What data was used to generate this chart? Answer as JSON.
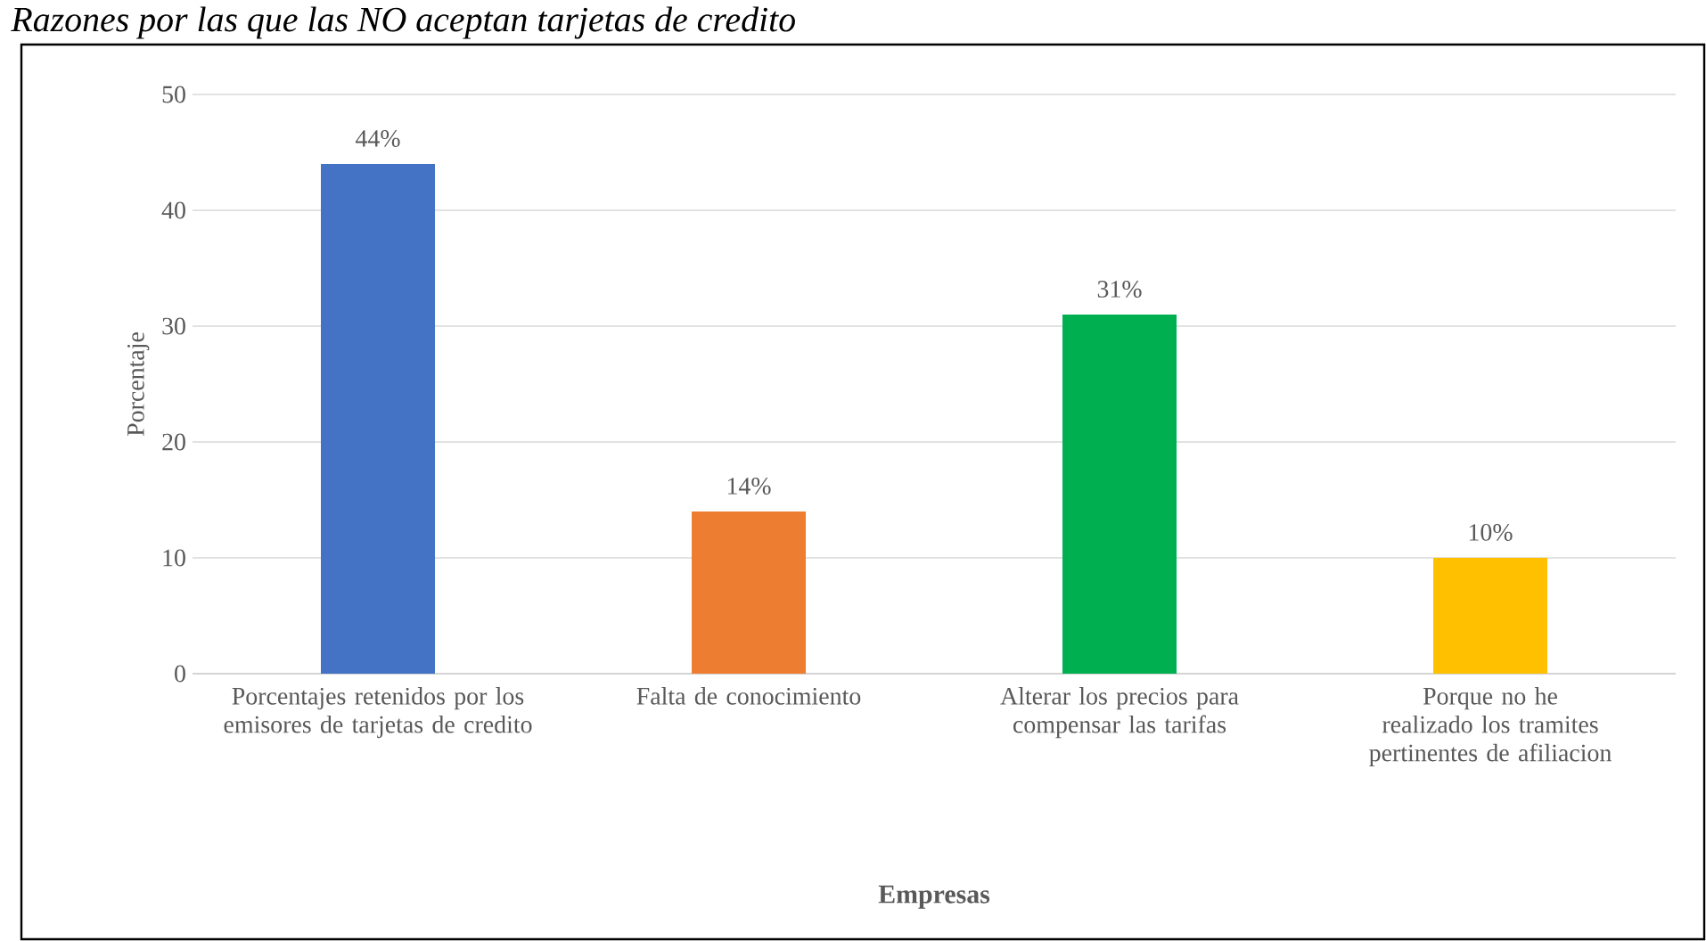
{
  "chart_data": {
    "type": "bar",
    "title": "Razones por las que las NO aceptan tarjetas de credito",
    "xlabel": "Empresas",
    "ylabel": "Porcentaje",
    "categories": [
      "Porcentajes retenidos por los emisores de tarjetas de credito",
      "Falta de conocimiento",
      "Alterar los precios para compensar las tarifas",
      "Porque no he realizado los tramites pertinentes de afiliacion"
    ],
    "values": [
      44,
      14,
      31,
      10
    ],
    "value_labels": [
      "44%",
      "14%",
      "31%",
      "10%"
    ],
    "colors": [
      "#4472c4",
      "#ed7d31",
      "#00b050",
      "#ffc000"
    ],
    "ylim": [
      0,
      50
    ],
    "yticks": [
      0,
      10,
      20,
      30,
      40,
      50
    ],
    "grid": "y"
  }
}
